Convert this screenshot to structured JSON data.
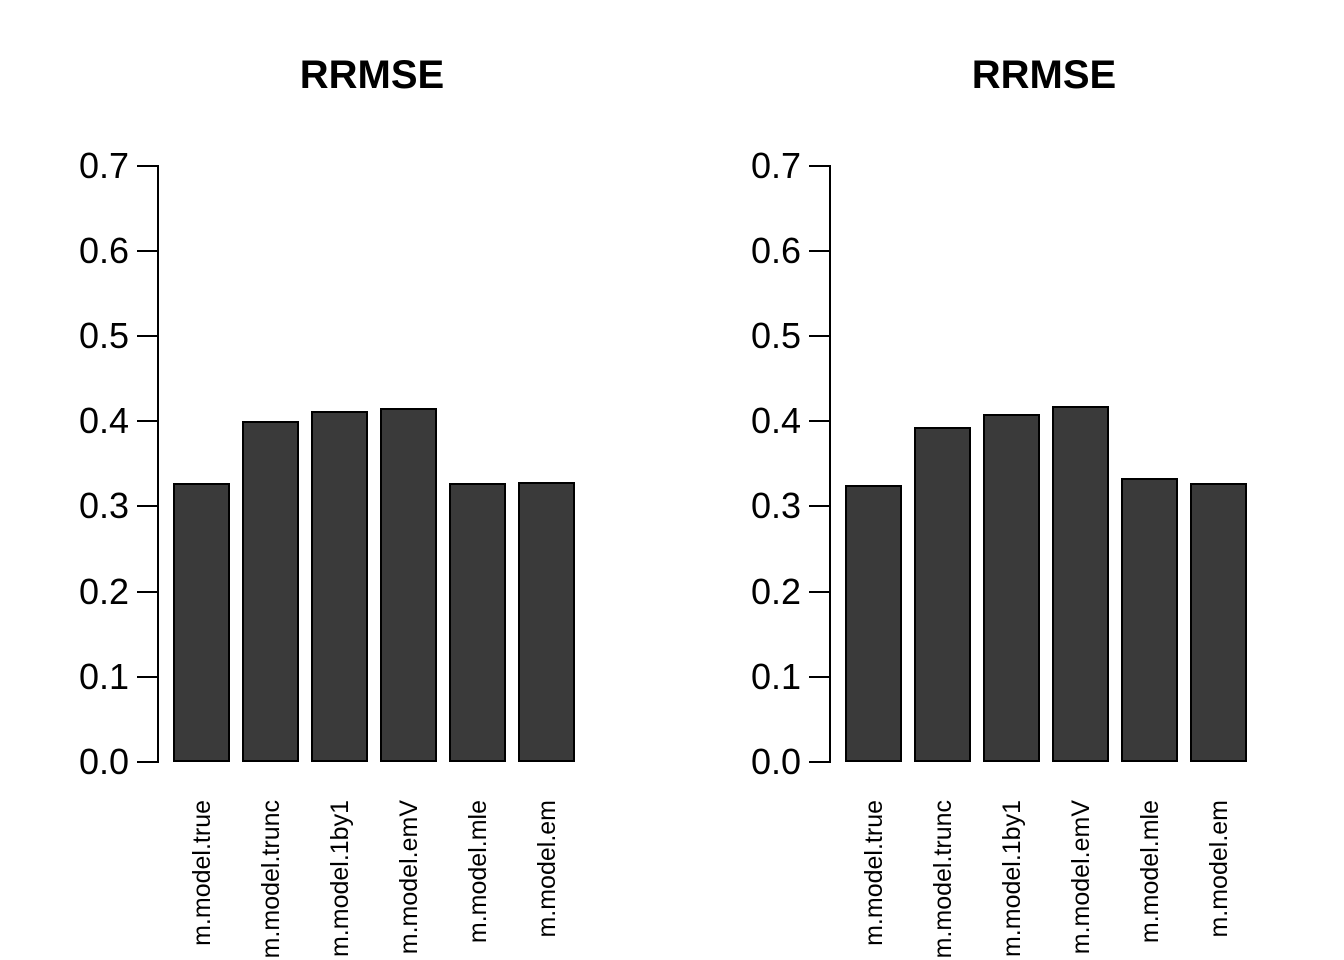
{
  "page": {
    "background": "#ffffff",
    "axis_color": "#000000",
    "text_color": "#000000",
    "bar_fill": "#3a3a3a",
    "bar_border": "#000000"
  },
  "chart_data": [
    {
      "type": "bar",
      "title": "RRMSE",
      "categories": [
        "m.model.true",
        "m.model.trunc",
        "m.model.1by1",
        "m.model.emV",
        "m.model.mle",
        "m.model.em"
      ],
      "values": [
        0.328,
        0.4,
        0.412,
        0.415,
        0.327,
        0.329
      ],
      "xlabel": "",
      "ylabel": "",
      "ylim": [
        0.0,
        0.7
      ],
      "yticks": [
        0.0,
        0.1,
        0.2,
        0.3,
        0.4,
        0.5,
        0.6,
        0.7
      ],
      "ytick_labels": [
        "0.0",
        "0.1",
        "0.2",
        "0.3",
        "0.4",
        "0.5",
        "0.6",
        "0.7"
      ],
      "grid": false,
      "legend_position": "none",
      "bar_color": "#3a3a3a"
    },
    {
      "type": "bar",
      "title": "RRMSE",
      "categories": [
        "m.model.true",
        "m.model.trunc",
        "m.model.1by1",
        "m.model.emV",
        "m.model.mle",
        "m.model.em"
      ],
      "values": [
        0.325,
        0.393,
        0.409,
        0.418,
        0.333,
        0.328
      ],
      "xlabel": "",
      "ylabel": "",
      "ylim": [
        0.0,
        0.7
      ],
      "yticks": [
        0.0,
        0.1,
        0.2,
        0.3,
        0.4,
        0.5,
        0.6,
        0.7
      ],
      "ytick_labels": [
        "0.0",
        "0.1",
        "0.2",
        "0.3",
        "0.4",
        "0.5",
        "0.6",
        "0.7"
      ],
      "grid": false,
      "legend_position": "none",
      "bar_color": "#3a3a3a"
    }
  ]
}
